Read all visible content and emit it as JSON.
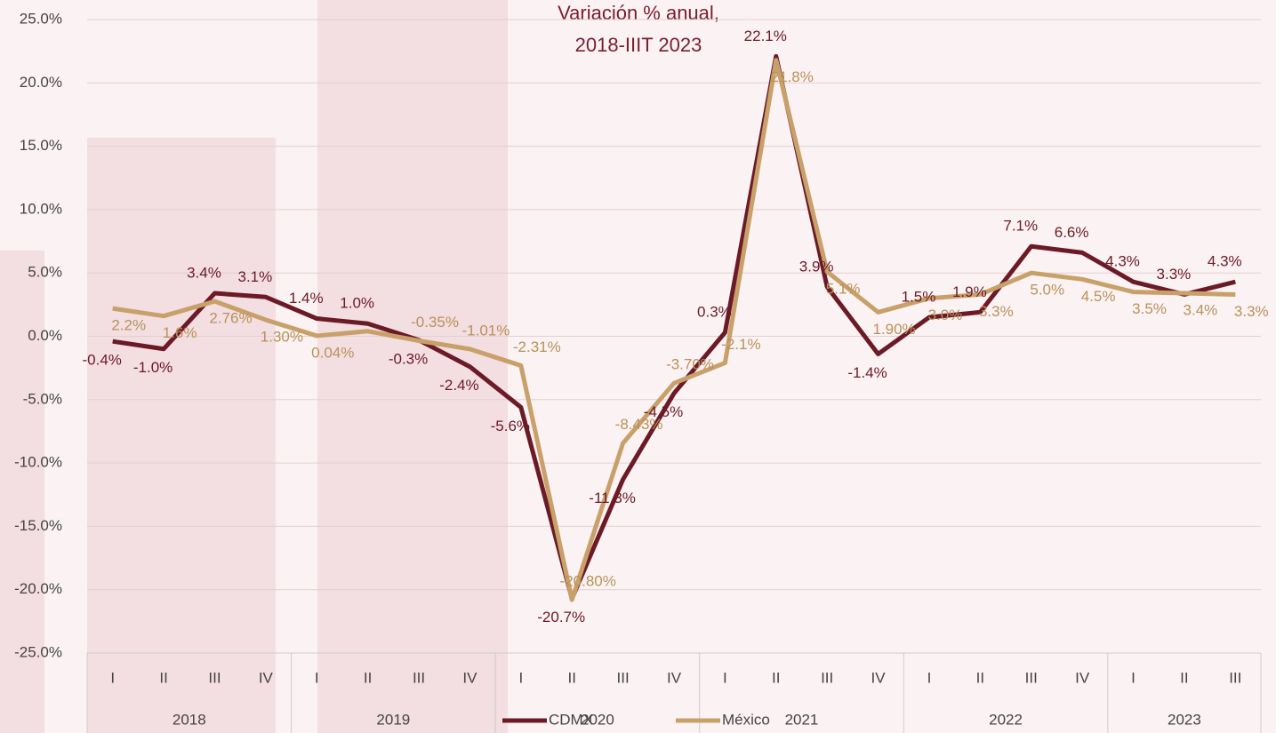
{
  "chart_data": {
    "type": "line",
    "title": "Variación % anual,",
    "subtitle": "2018-IIIT 2023",
    "categories": [
      "I",
      "II",
      "III",
      "IV",
      "I",
      "II",
      "III",
      "IV",
      "I",
      "II",
      "III",
      "IV",
      "I",
      "II",
      "III",
      "IV",
      "I",
      "II",
      "III",
      "IV",
      "I",
      "II",
      "III"
    ],
    "groups": [
      {
        "label": "2018",
        "span": 4
      },
      {
        "label": "2019",
        "span": 4
      },
      {
        "label": "2020",
        "span": 4
      },
      {
        "label": "2021",
        "span": 4
      },
      {
        "label": "2022",
        "span": 4
      },
      {
        "label": "2023",
        "span": 3
      }
    ],
    "series": [
      {
        "name": "CDMX",
        "color": "#6b1a26",
        "label_color": "#6b1a26",
        "values": [
          -0.4,
          -1.0,
          3.4,
          3.1,
          1.4,
          1.0,
          -0.3,
          -2.4,
          -5.6,
          -20.7,
          -11.3,
          -4.5,
          0.3,
          22.1,
          3.9,
          -1.4,
          1.5,
          1.9,
          7.1,
          6.6,
          4.3,
          3.3,
          4.3
        ],
        "value_labels": [
          "-0.4%",
          "-1.0%",
          "3.4%",
          "3.1%",
          "1.4%",
          "1.0%",
          "-0.3%",
          "-2.4%",
          "-5.6%",
          "-20.7%",
          "-11.3%",
          "-4.5%",
          "0.3%",
          "22.1%",
          "3.9%",
          "-1.4%",
          "1.5%",
          "1.9%",
          "7.1%",
          "6.6%",
          "4.3%",
          "3.3%",
          "4.3%"
        ]
      },
      {
        "name": "México",
        "color": "#c8a06a",
        "label_color": "#b8925a",
        "values": [
          2.2,
          1.6,
          2.76,
          1.3,
          0.04,
          0.4,
          -0.35,
          -1.01,
          -2.31,
          -20.8,
          -8.43,
          -3.7,
          -2.1,
          21.8,
          5.1,
          1.9,
          3.0,
          3.3,
          5.0,
          4.5,
          3.5,
          3.4,
          3.3
        ],
        "value_labels": [
          "2.2%",
          "1.6%",
          "2.76%",
          "1.30%",
          "0.04%",
          null,
          "-0.35%",
          "-1.01%",
          "-2.31%",
          "-20.80%",
          "-8.43%",
          "-3.70%",
          "-2.1%",
          "21.8%",
          "5.1%",
          "1.90%",
          "3.0%",
          "3.3%",
          "5.0%",
          "4.5%",
          "3.5%",
          "3.4%",
          "3.3%"
        ]
      }
    ],
    "ylim": [
      -25,
      25
    ],
    "yticks": [
      {
        "value": -25,
        "label": "-25.0%"
      },
      {
        "value": -20,
        "label": "-20.0%"
      },
      {
        "value": -15,
        "label": "-15.0%"
      },
      {
        "value": -10,
        "label": "-10.0%"
      },
      {
        "value": -5,
        "label": "-5.0%"
      },
      {
        "value": 0,
        "label": "0.0%"
      },
      {
        "value": 5,
        "label": "5.0%"
      },
      {
        "value": 10,
        "label": "10.0%"
      },
      {
        "value": 15,
        "label": "15.0%"
      },
      {
        "value": 20,
        "label": "20.0%"
      },
      {
        "value": 25,
        "label": "25.0%"
      }
    ],
    "grid": true,
    "legend": "bottom"
  }
}
